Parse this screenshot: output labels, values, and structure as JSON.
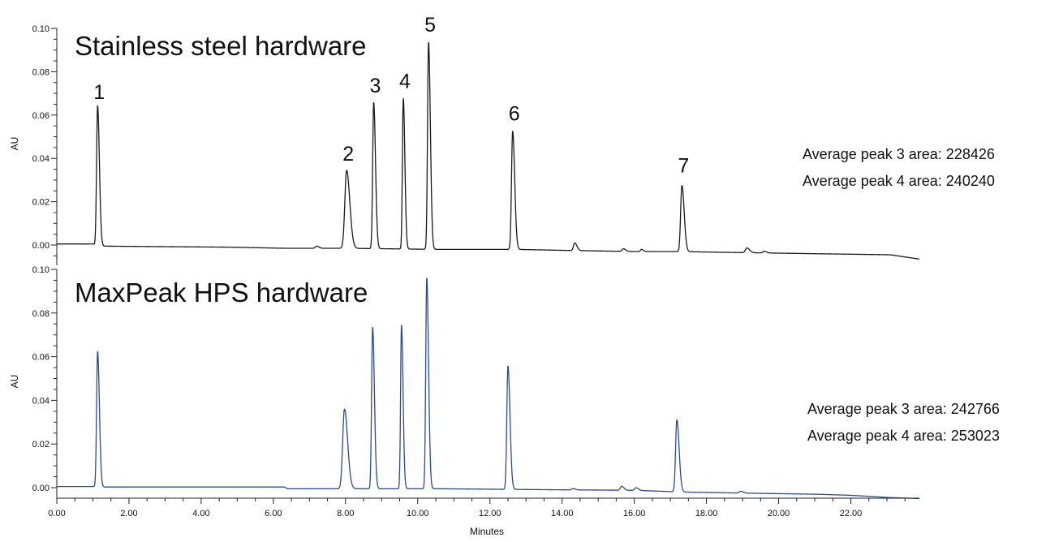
{
  "chart_data": [
    {
      "type": "line",
      "title": "Stainless steel hardware",
      "xlabel": "Minutes",
      "ylabel": "AU",
      "xlim": [
        0,
        23.9
      ],
      "ylim": [
        -0.005,
        0.1
      ],
      "y_ticks": [
        "0.00",
        "0.02",
        "0.04",
        "0.06",
        "0.08",
        "0.10"
      ],
      "color": "#1a1a1a",
      "baseline": [
        [
          0,
          0.0005
        ],
        [
          1.0,
          0.0005
        ],
        [
          1.2,
          -0.0005
        ],
        [
          4.9,
          -0.001
        ],
        [
          6.3,
          -0.0015
        ],
        [
          8.0,
          -0.0015
        ],
        [
          10.5,
          -0.002
        ],
        [
          12.7,
          -0.002
        ],
        [
          14.2,
          -0.0025
        ],
        [
          16.0,
          -0.003
        ],
        [
          17.2,
          -0.003
        ],
        [
          19.0,
          -0.0035
        ],
        [
          21.0,
          -0.004
        ],
        [
          23.1,
          -0.0045
        ],
        [
          23.9,
          -0.0065
        ]
      ],
      "peaks": [
        {
          "label": "1",
          "rt": 1.13,
          "height": 0.0645,
          "width": 0.04
        },
        {
          "label": "2",
          "rt": 8.03,
          "height": 0.036,
          "width": 0.07
        },
        {
          "label": "3",
          "rt": 8.78,
          "height": 0.0675,
          "width": 0.04
        },
        {
          "label": "4",
          "rt": 9.6,
          "height": 0.0695,
          "width": 0.035
        },
        {
          "label": "5",
          "rt": 10.3,
          "height": 0.0955,
          "width": 0.04
        },
        {
          "label": "6",
          "rt": 12.63,
          "height": 0.0545,
          "width": 0.045
        },
        {
          "label": "7",
          "rt": 17.32,
          "height": 0.0305,
          "width": 0.05
        }
      ],
      "minor_peaks": [
        {
          "rt": 7.2,
          "height": 0.001,
          "width": 0.05
        },
        {
          "rt": 14.35,
          "height": 0.0035,
          "width": 0.05
        },
        {
          "rt": 15.7,
          "height": 0.0012,
          "width": 0.05
        },
        {
          "rt": 16.2,
          "height": 0.001,
          "width": 0.04
        },
        {
          "rt": 19.12,
          "height": 0.0022,
          "width": 0.06
        },
        {
          "rt": 19.6,
          "height": 0.0008,
          "width": 0.05
        }
      ],
      "annotations": [
        "Average peak 3 area: 228426",
        "Average peak 4 area: 240240"
      ]
    },
    {
      "type": "line",
      "title": "MaxPeak HPS hardware",
      "xlabel": "Minutes",
      "ylabel": "AU",
      "xlim": [
        0,
        23.9
      ],
      "ylim": [
        -0.005,
        0.1
      ],
      "y_ticks": [
        "0.00",
        "0.02",
        "0.04",
        "0.06",
        "0.08",
        "0.10"
      ],
      "x_ticks": [
        "0.00",
        "2.00",
        "4.00",
        "6.00",
        "8.00",
        "10.00",
        "12.00",
        "14.00",
        "16.00",
        "18.00",
        "20.00",
        "22.00"
      ],
      "color": "#2c4a8f",
      "baseline": [
        [
          0,
          0.0005
        ],
        [
          1.0,
          0.0005
        ],
        [
          1.25,
          0.0003
        ],
        [
          6.3,
          0.0003
        ],
        [
          6.4,
          -0.0005
        ],
        [
          8.7,
          -0.0005
        ],
        [
          10.5,
          -0.0005
        ],
        [
          12.6,
          -0.0008
        ],
        [
          14.0,
          -0.001
        ],
        [
          16.0,
          -0.0012
        ],
        [
          17.3,
          -0.002
        ],
        [
          19.0,
          -0.0025
        ],
        [
          21.0,
          -0.003
        ],
        [
          22.0,
          -0.0035
        ],
        [
          23.0,
          -0.0045
        ],
        [
          23.9,
          -0.005
        ]
      ],
      "peaks": [
        {
          "rt": 1.13,
          "height": 0.062,
          "width": 0.04
        },
        {
          "rt": 7.97,
          "height": 0.0365,
          "width": 0.07
        },
        {
          "rt": 8.75,
          "height": 0.074,
          "width": 0.04
        },
        {
          "rt": 9.55,
          "height": 0.075,
          "width": 0.035
        },
        {
          "rt": 10.25,
          "height": 0.0965,
          "width": 0.04
        },
        {
          "rt": 12.5,
          "height": 0.0565,
          "width": 0.045
        },
        {
          "rt": 17.18,
          "height": 0.033,
          "width": 0.05
        }
      ],
      "minor_peaks": [
        {
          "rt": 14.3,
          "height": 0.0006,
          "width": 0.05
        },
        {
          "rt": 15.65,
          "height": 0.0018,
          "width": 0.05
        },
        {
          "rt": 16.05,
          "height": 0.0012,
          "width": 0.05
        },
        {
          "rt": 18.95,
          "height": 0.0008,
          "width": 0.06
        }
      ],
      "annotations": [
        "Average peak 3 area: 242766",
        "Average peak 4 area: 253023"
      ]
    }
  ]
}
